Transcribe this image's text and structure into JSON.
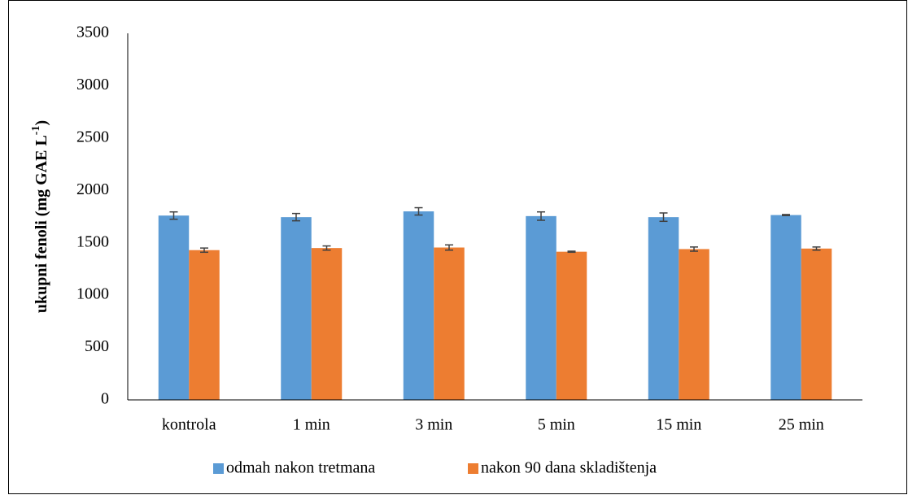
{
  "chart_data": {
    "type": "bar",
    "ylabel_parts": [
      "ukupni fenoli (mg GAE L",
      "-1",
      ")"
    ],
    "categories": [
      "kontrola",
      "1 min",
      "3 min",
      "5 min",
      "15 min",
      "25 min"
    ],
    "series": [
      {
        "name": "odmah nakon tretmana",
        "color": "#5b9bd5",
        "values": [
          1760,
          1745,
          1800,
          1755,
          1745,
          1765
        ],
        "errors": [
          35,
          35,
          35,
          40,
          40,
          5
        ]
      },
      {
        "name": "nakon 90 dana skladištenja",
        "color": "#ed7d31",
        "values": [
          1430,
          1450,
          1455,
          1415,
          1440,
          1445
        ],
        "errors": [
          20,
          20,
          25,
          5,
          20,
          15
        ]
      }
    ],
    "ylim": [
      0,
      3500
    ],
    "yticks": [
      0,
      500,
      1000,
      1500,
      2000,
      2500,
      3000,
      3500
    ],
    "grid": false,
    "legend": "bottom"
  }
}
